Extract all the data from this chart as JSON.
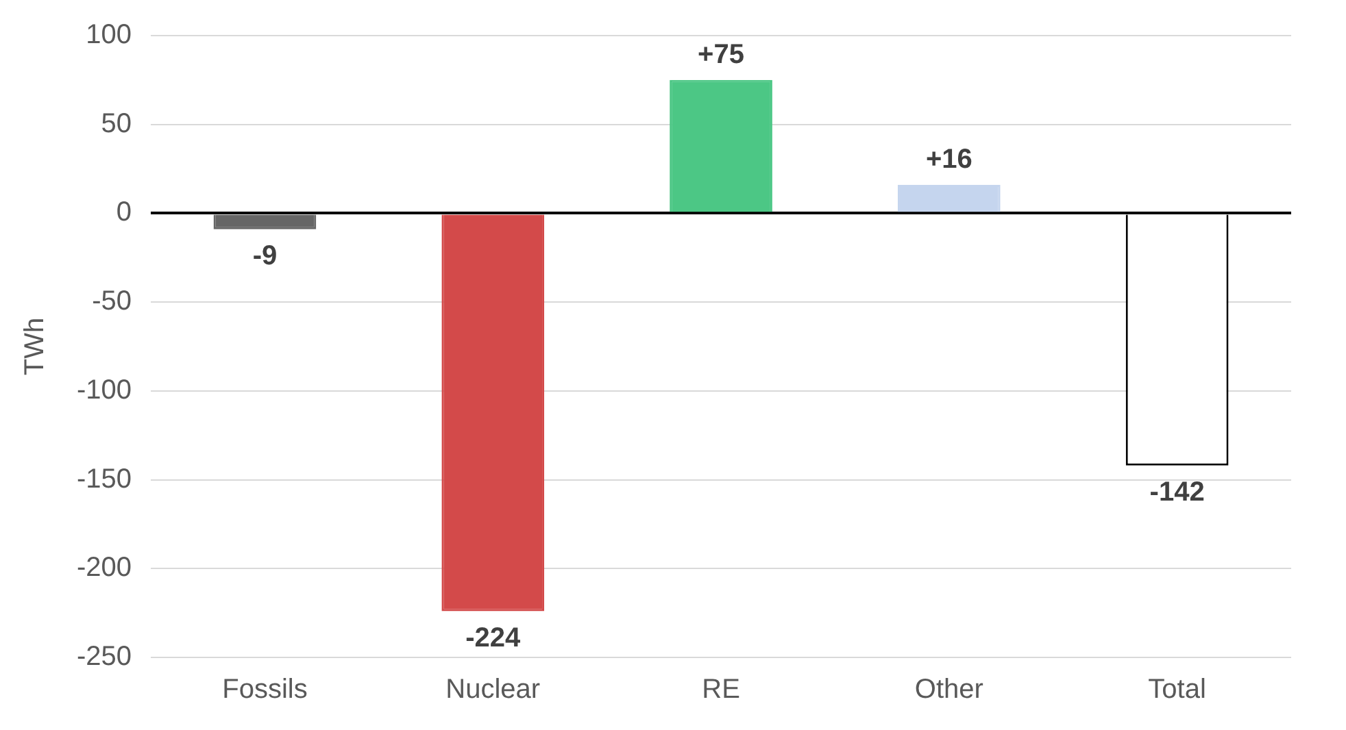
{
  "chart_data": {
    "type": "bar",
    "ylabel": "TWh",
    "categories": [
      "Fossils",
      "Nuclear",
      "RE",
      "Other",
      "Total"
    ],
    "values": [
      -9,
      -224,
      75,
      16,
      -142
    ],
    "value_labels": [
      "-9",
      "-224",
      "+75",
      "+16",
      "-142"
    ],
    "colors": [
      "#666666",
      "#d34a4a",
      "#4cc785",
      "#c5d5ee",
      "#ffffff"
    ],
    "ylim": [
      -250,
      100
    ],
    "yticks": [
      -250,
      -200,
      -150,
      -100,
      -50,
      0,
      50,
      100
    ],
    "grid": "y",
    "legend": false
  }
}
